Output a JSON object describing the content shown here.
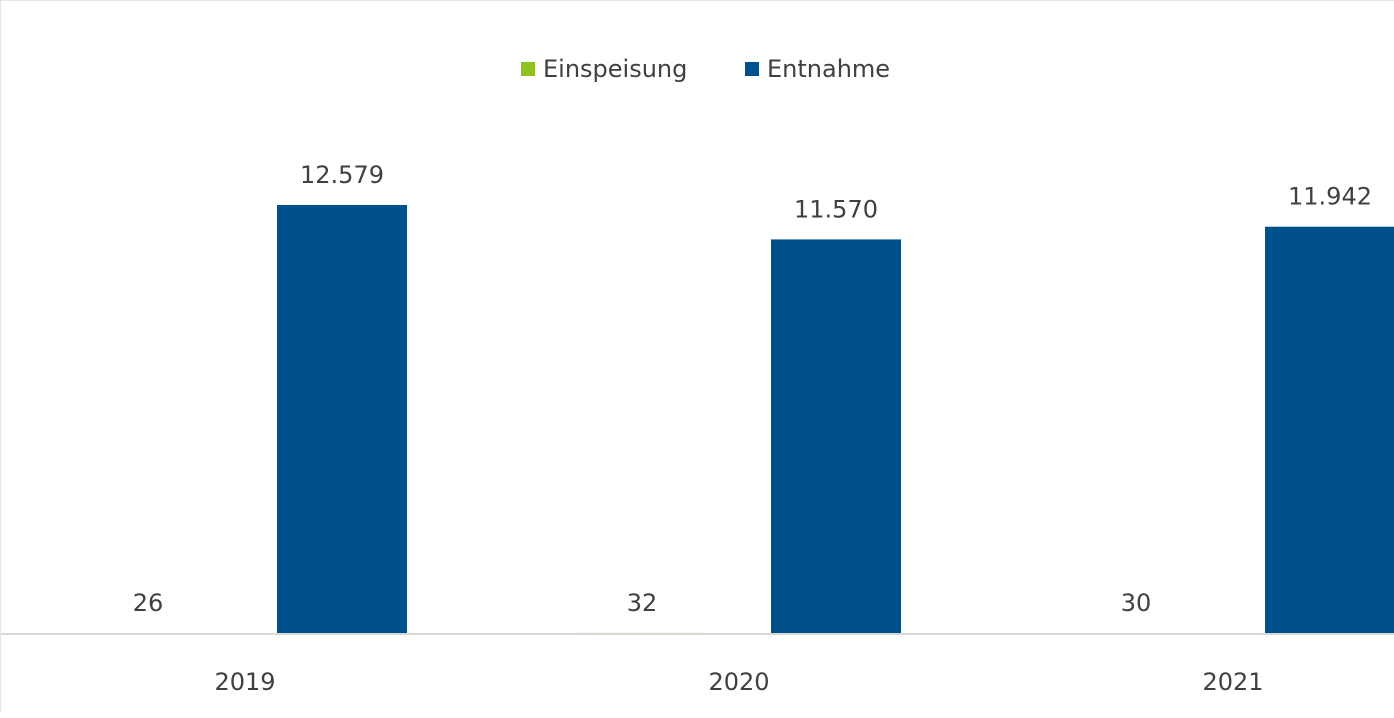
{
  "chart_data": {
    "type": "bar",
    "categories": [
      "2019",
      "2020",
      "2021"
    ],
    "series": [
      {
        "name": "Einspeisung",
        "color": "#8dc21f",
        "values": [
          26,
          32,
          30
        ],
        "labels": [
          "26",
          "32",
          "30"
        ]
      },
      {
        "name": "Entnahme",
        "color": "#00508c",
        "values": [
          12579,
          11570,
          11942
        ],
        "labels": [
          "12.579",
          "11.570",
          "11.942"
        ]
      }
    ],
    "legend": "top-center",
    "grid": false,
    "ylim": [
      0,
      13400
    ]
  }
}
